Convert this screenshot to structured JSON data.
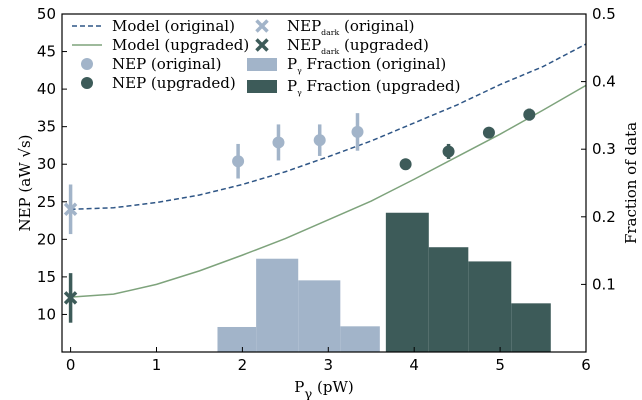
{
  "chart_data": {
    "type": "combo",
    "xlabel": [
      "P",
      "γ",
      " (pW)"
    ],
    "ylabel": "NEP (aW √s)",
    "y2label": "Fraction of data",
    "xlim": [
      -0.1,
      6
    ],
    "xticks": [
      0,
      1,
      2,
      3,
      4,
      5,
      6
    ],
    "ylim": [
      5,
      50
    ],
    "yticks": [
      10,
      15,
      20,
      25,
      30,
      35,
      40,
      45,
      50
    ],
    "y2lim": [
      0,
      0.5
    ],
    "y2ticks": [
      0.1,
      0.2,
      0.3,
      0.4,
      0.5
    ],
    "legend": "upper left",
    "series": [
      {
        "kind": "line",
        "dash": true,
        "name": "Model (original)",
        "color": "#2f5686",
        "x": [
          0,
          0.5,
          1,
          1.5,
          2,
          2.5,
          3,
          3.5,
          4,
          4.5,
          5,
          5.5,
          6
        ],
        "values": [
          24.0,
          24.2,
          24.9,
          25.9,
          27.3,
          29.0,
          31.0,
          33.1,
          35.5,
          37.9,
          40.6,
          43.0,
          46.0
        ]
      },
      {
        "kind": "line",
        "dash": false,
        "name": "Model (upgraded)",
        "color": "#7ea37c",
        "x": [
          0,
          0.5,
          1,
          1.5,
          2,
          2.5,
          3,
          3.5,
          4,
          4.5,
          5,
          5.5,
          6
        ],
        "values": [
          12.3,
          12.7,
          14.0,
          15.8,
          17.9,
          20.1,
          22.6,
          25.1,
          28.0,
          31.0,
          34.0,
          37.2,
          40.5
        ]
      },
      {
        "kind": "points",
        "name": "NEP (original)",
        "color": "#a2b4c9",
        "x": [
          1.95,
          2.42,
          2.9,
          3.34
        ],
        "values": [
          30.4,
          32.9,
          33.2,
          34.3
        ],
        "errors": [
          2.3,
          2.4,
          2.1,
          2.5
        ]
      },
      {
        "kind": "points",
        "name": "NEP (upgraded)",
        "color": "#3d5b59",
        "x": [
          3.9,
          4.4,
          4.87,
          5.34
        ],
        "values": [
          30.0,
          31.7,
          34.2,
          36.6
        ],
        "errors": [
          0.6,
          1.0,
          0.4,
          0.8
        ]
      },
      {
        "kind": "dark",
        "name": [
          "NEP",
          "dark",
          " (original)"
        ],
        "color": "#a2b4c9",
        "x": [
          0
        ],
        "values": [
          24.0
        ],
        "errors": [
          3.3
        ]
      },
      {
        "kind": "dark",
        "name": [
          "NEP",
          "dark",
          " (upgraded)"
        ],
        "color": "#3d5b59",
        "x": [
          0
        ],
        "values": [
          12.2
        ],
        "errors": [
          3.3
        ]
      },
      {
        "kind": "hist",
        "axis": "y2",
        "name": [
          "P",
          "γ",
          " Fraction (original)"
        ],
        "color": "#a2b4c9",
        "bins": [
          1.71,
          2.16,
          2.65,
          3.14,
          3.6
        ],
        "values": [
          0.037,
          0.138,
          0.106,
          0.038
        ]
      },
      {
        "kind": "hist",
        "axis": "y2",
        "name": [
          "P",
          "γ",
          " Fraction (upgraded)"
        ],
        "color": "#3d5b59",
        "bins": [
          3.67,
          4.17,
          4.63,
          5.13,
          5.59
        ],
        "values": [
          0.206,
          0.155,
          0.134,
          0.072
        ]
      }
    ]
  }
}
